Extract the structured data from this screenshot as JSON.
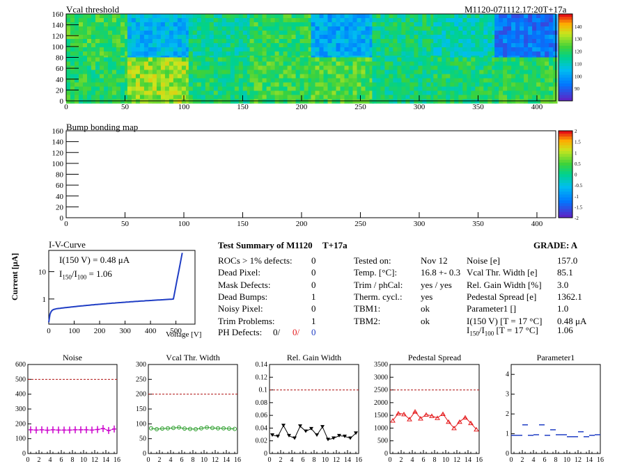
{
  "module_id": "M1120-071112.17:20T+17a",
  "panels": {
    "vcal_threshold": {
      "title": "Vcal threshold",
      "x_ticks": [
        "0",
        "50",
        "100",
        "150",
        "200",
        "250",
        "300",
        "350",
        "400"
      ],
      "y_ticks": [
        "0",
        "20",
        "40",
        "60",
        "80",
        "100",
        "120",
        "140",
        "160"
      ],
      "colorbar_ticks": [
        "90",
        "100",
        "110",
        "120",
        "130",
        "140"
      ]
    },
    "bump_bonding": {
      "title": "Bump bonding map",
      "x_ticks": [
        "0",
        "50",
        "100",
        "150",
        "200",
        "250",
        "300",
        "350",
        "400"
      ],
      "y_ticks": [
        "0",
        "20",
        "40",
        "60",
        "80",
        "100",
        "120",
        "140",
        "160"
      ],
      "colorbar_ticks": [
        "-2",
        "-1.5",
        "-1",
        "-0.5",
        "0",
        "0.5",
        "1",
        "1.5",
        "2"
      ]
    }
  },
  "iv": {
    "title": "I-V-Curve",
    "ylabel": "Current [μA]",
    "xlabel": "Voltage [V]",
    "x_ticks": [
      "0",
      "100",
      "200",
      "300",
      "400",
      "500"
    ],
    "y_ticks": [
      "1",
      "10"
    ],
    "annot1": "I(150 V) = 0.48 μA",
    "annot2_prefix": "I",
    "annot2_sub1": "150",
    "annot2_mid": "/I",
    "annot2_sub2": "100",
    "annot2_suffix": " =  1.06"
  },
  "summary": {
    "title": "Test Summary of M1120",
    "tag": "T+17a",
    "grade_label": "GRADE:  A",
    "defects": [
      {
        "label": "ROCs > 1% defects:",
        "value": "0"
      },
      {
        "label": "Dead Pixel:",
        "value": "0"
      },
      {
        "label": "Mask Defects:",
        "value": "0"
      },
      {
        "label": "Dead Bumps:",
        "value": "1"
      },
      {
        "label": "Noisy Pixel:",
        "value": "0"
      },
      {
        "label": "Trim Problems:",
        "value": "1"
      }
    ],
    "ph_defects": {
      "label": "PH Defects:",
      "v1": "0/",
      "v2": "0/",
      "v3": "0"
    },
    "test_info": [
      {
        "label": "Tested on:",
        "value": "Nov 12"
      },
      {
        "label": "Temp. [°C]:",
        "value": "16.8 +- 0.3"
      },
      {
        "label": "Trim / phCal:",
        "value": "yes / yes"
      },
      {
        "label": "Therm. cycl.:",
        "value": "yes"
      },
      {
        "label": "TBM1:",
        "value": "ok"
      },
      {
        "label": "TBM2:",
        "value": "ok"
      }
    ],
    "results": [
      {
        "label": "Noise [e]",
        "value": "157.0"
      },
      {
        "label": "Vcal Thr. Width [e]",
        "value": "85.1"
      },
      {
        "label": "Rel. Gain Width [%]",
        "value": "3.0"
      },
      {
        "label": "Pedestal Spread [e]",
        "value": "1362.1"
      },
      {
        "label": "Parameter1 []",
        "value": "1.0"
      },
      {
        "label": "I(150 V) [T = 17 °C]",
        "value": "0.48 μA"
      }
    ],
    "ratio_row": {
      "prefix": "I",
      "sub1": "150",
      "mid": "/I",
      "sub2": "100",
      "suffix": "  [T = 17 °C]",
      "value": "1.06"
    }
  },
  "chart_data": [
    {
      "type": "line",
      "title": "Noise",
      "x": [
        0,
        1,
        2,
        3,
        4,
        5,
        6,
        7,
        8,
        9,
        10,
        11,
        12,
        13,
        14,
        15
      ],
      "values": [
        160,
        158,
        160,
        157,
        160,
        158,
        158,
        158,
        160,
        160,
        160,
        158,
        162,
        168,
        155,
        165
      ],
      "errors": [
        12,
        12,
        12,
        12,
        12,
        12,
        12,
        12,
        12,
        12,
        12,
        12,
        12,
        12,
        12,
        12
      ],
      "threshold": 500,
      "ylim": [
        0,
        600
      ],
      "y_ticks": [
        0,
        100,
        200,
        300,
        400,
        500,
        600
      ],
      "x_ticks": [
        0,
        2,
        4,
        6,
        8,
        10,
        12,
        14,
        16
      ],
      "color": "#cc00cc",
      "marker": "plus"
    },
    {
      "type": "line",
      "title": "Vcal Thr. Width",
      "x": [
        0,
        1,
        2,
        3,
        4,
        5,
        6,
        7,
        8,
        9,
        10,
        11,
        12,
        13,
        14,
        15
      ],
      "values": [
        85,
        82,
        84,
        85,
        86,
        88,
        84,
        83,
        82,
        85,
        88,
        86,
        85,
        85,
        84,
        83
      ],
      "threshold": 200,
      "ylim": [
        0,
        300
      ],
      "y_ticks": [
        0,
        50,
        100,
        150,
        200,
        250,
        300
      ],
      "x_ticks": [
        0,
        2,
        4,
        6,
        8,
        10,
        12,
        14,
        16
      ],
      "color": "#2a9d2a",
      "marker": "circle"
    },
    {
      "type": "line",
      "title": "Rel. Gain Width",
      "x": [
        0,
        1,
        2,
        3,
        4,
        5,
        6,
        7,
        8,
        9,
        10,
        11,
        12,
        13,
        14,
        15
      ],
      "values": [
        0.029,
        0.027,
        0.044,
        0.028,
        0.024,
        0.043,
        0.035,
        0.039,
        0.029,
        0.042,
        0.022,
        0.024,
        0.028,
        0.027,
        0.024,
        0.032
      ],
      "threshold": 0.1,
      "ylim": [
        0,
        0.14
      ],
      "y_ticks": [
        0,
        0.02,
        0.04,
        0.06,
        0.08,
        0.1,
        0.12,
        0.14
      ],
      "x_ticks": [
        0,
        2,
        4,
        6,
        8,
        10,
        12,
        14,
        16
      ],
      "color": "#000000",
      "marker": "triangle-down"
    },
    {
      "type": "line",
      "title": "Pedestal Spread",
      "x": [
        0,
        1,
        2,
        3,
        4,
        5,
        6,
        7,
        8,
        9,
        10,
        11,
        12,
        13,
        14,
        15
      ],
      "values": [
        1300,
        1580,
        1550,
        1350,
        1650,
        1380,
        1530,
        1480,
        1400,
        1560,
        1250,
        1000,
        1250,
        1420,
        1200,
        950
      ],
      "threshold": 2500,
      "ylim": [
        0,
        3500
      ],
      "y_ticks": [
        0,
        500,
        1000,
        1500,
        2000,
        2500,
        3000,
        3500
      ],
      "x_ticks": [
        0,
        2,
        4,
        6,
        8,
        10,
        12,
        14,
        16
      ],
      "color": "#e41a1c",
      "marker": "triangle-up"
    },
    {
      "type": "scatter",
      "title": "Parameter1",
      "x": [
        0,
        1,
        2,
        3,
        4,
        5,
        6,
        7,
        8,
        9,
        10,
        11,
        12,
        13,
        14,
        15
      ],
      "values": [
        0.92,
        0.92,
        1.45,
        0.92,
        0.95,
        1.45,
        0.92,
        1.2,
        0.95,
        0.95,
        0.85,
        0.85,
        1.1,
        0.85,
        0.92,
        0.95
      ],
      "ylim": [
        0,
        4.5
      ],
      "y_ticks": [
        0,
        1,
        2,
        3,
        4
      ],
      "x_ticks": [
        0,
        2,
        4,
        6,
        8,
        10,
        12,
        14,
        16
      ],
      "color": "#1f3dc4",
      "marker": "hline"
    }
  ]
}
